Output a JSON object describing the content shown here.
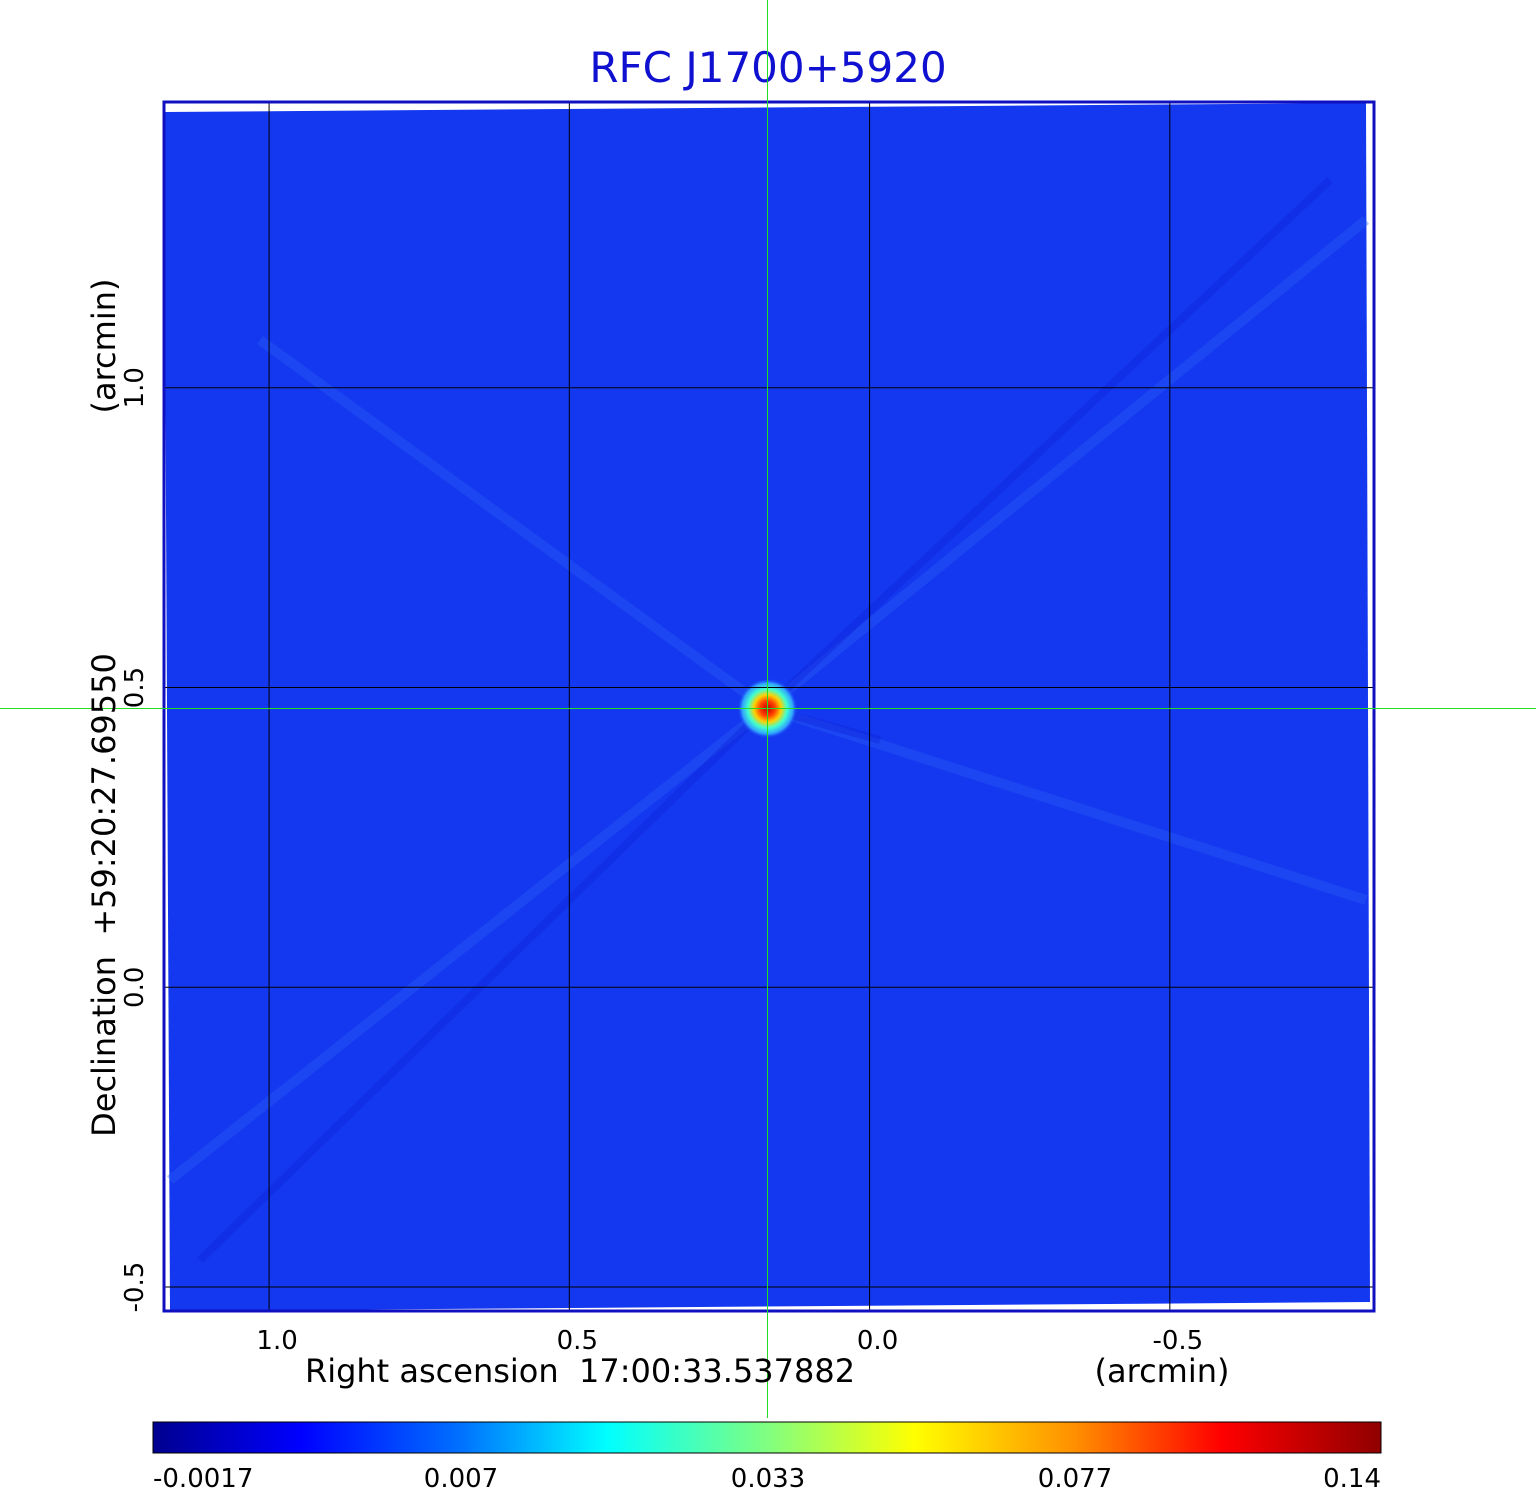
{
  "chart_data": {
    "type": "heatmap",
    "title": "RFC J1700+5920",
    "xlabel": "Right ascension  17:00:33.537882",
    "xunit": "(arcmin)",
    "ylabel": "Declination  +59:20:27.69550",
    "yunit": "(arcmin)",
    "x_ticks": [
      1.0,
      0.5,
      0.0,
      -0.5
    ],
    "x_tick_labels": [
      "1.0",
      "0.5",
      "0.0",
      "-0.5"
    ],
    "y_ticks": [
      1.0,
      0.5,
      0.0,
      -0.5
    ],
    "y_tick_labels": [
      "1.0",
      "0.5",
      "0.0",
      "-0.5"
    ],
    "xlim": [
      1.175,
      -0.84
    ],
    "ylim": [
      -0.54,
      1.475
    ],
    "grid": true,
    "crosshair": {
      "x": 0.17,
      "y": 0.465
    },
    "peak": {
      "x": 0.17,
      "y": 0.465,
      "value": 0.14
    },
    "colorbar": {
      "ticks": [
        -0.0017,
        0.007,
        0.033,
        0.077,
        0.14
      ],
      "tick_labels": [
        "-0.0017",
        "0.007",
        "0.033",
        "0.077",
        "0.14"
      ],
      "colormap": "jet"
    },
    "colors": {
      "title": "#1010d0",
      "frame": "#1010c0",
      "background": "#1438f0",
      "crosshair": "#22dd22",
      "grid": "#000000"
    }
  }
}
